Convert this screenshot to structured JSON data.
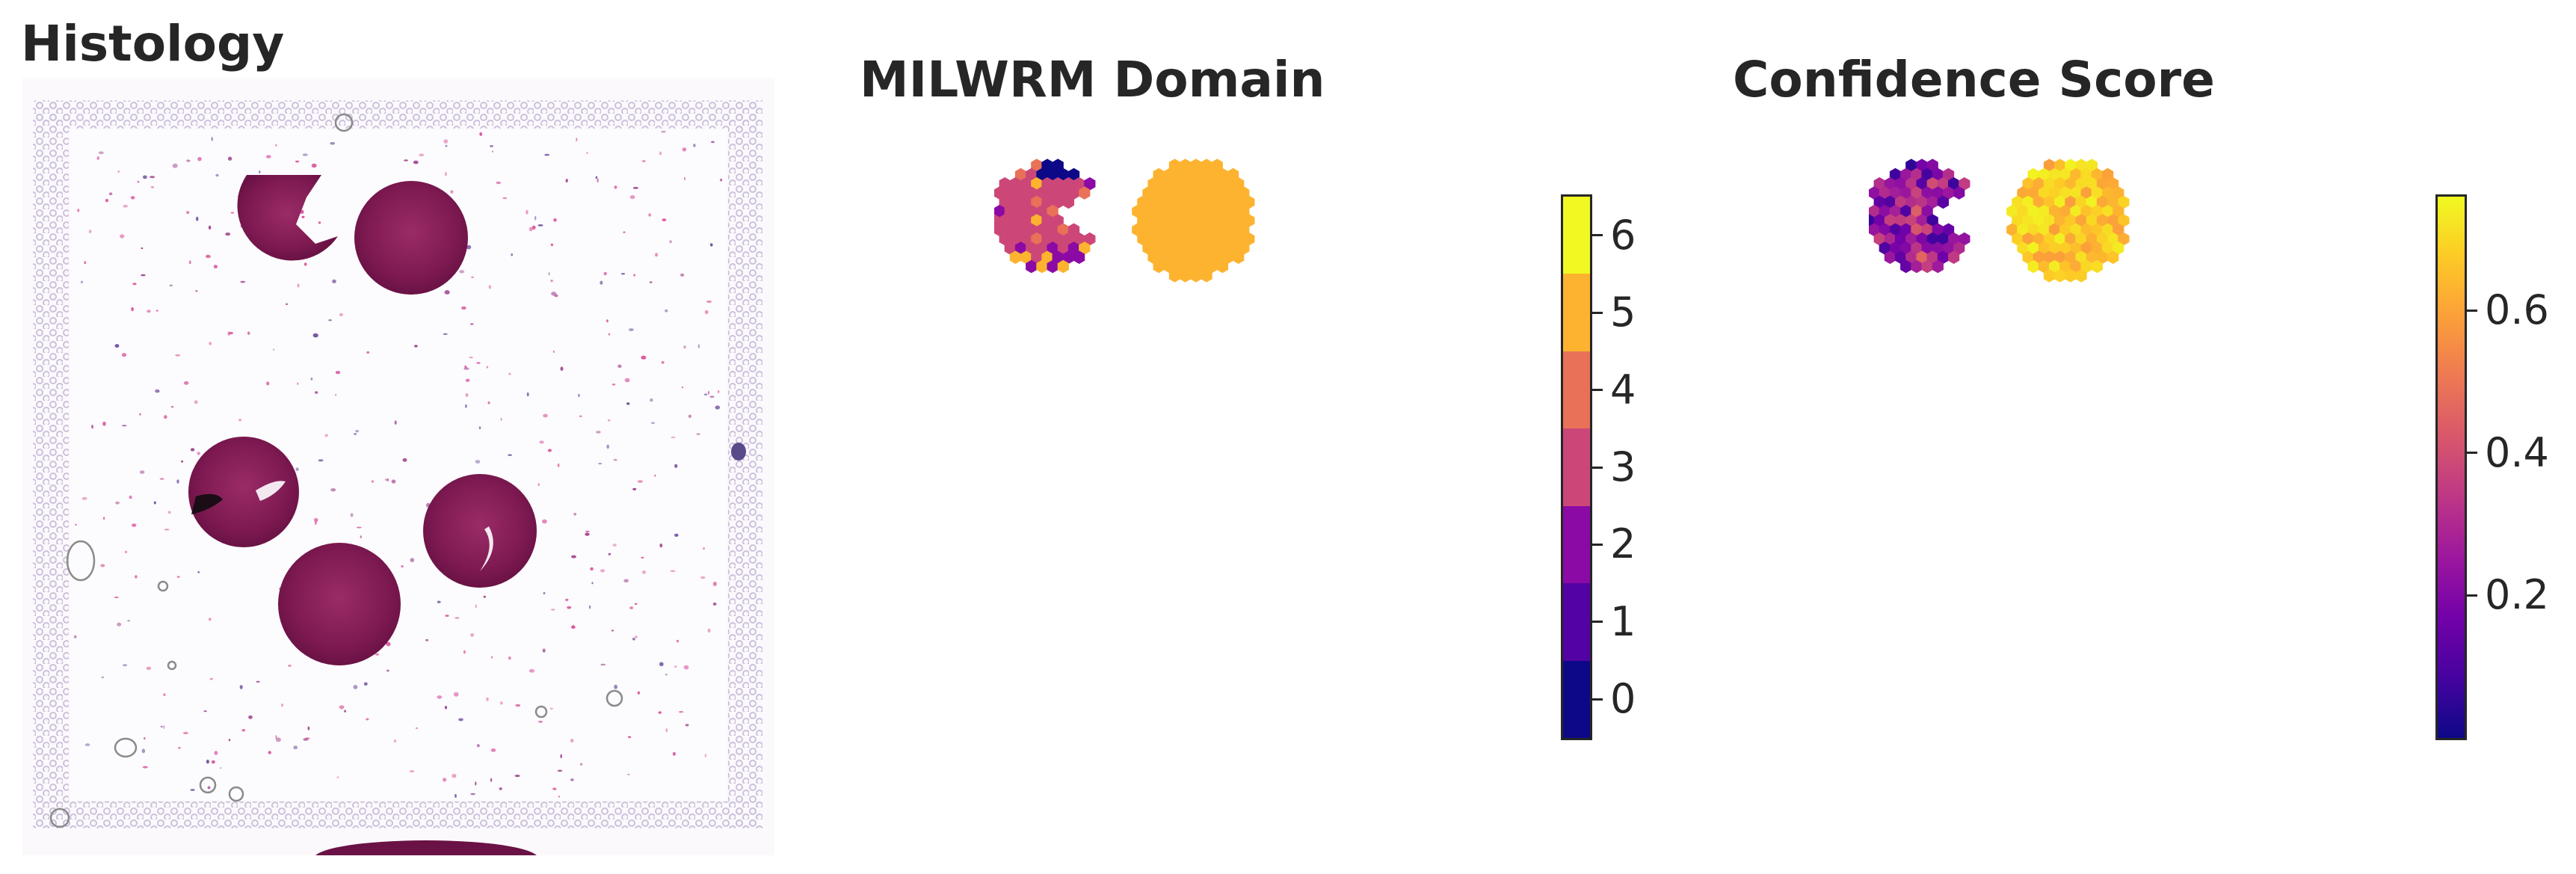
{
  "panels": {
    "histology": {
      "title": "Histology"
    },
    "domain": {
      "title": "MILWRM Domain",
      "colorbar": {
        "colormap": "plasma",
        "discrete": true,
        "ticks": [
          "0",
          "1",
          "2",
          "3",
          "4",
          "5",
          "6"
        ],
        "colors": [
          "#0d0887",
          "#5302a3",
          "#8b0aa5",
          "#cc4778",
          "#e97158",
          "#fdb32f",
          "#f0f921"
        ]
      }
    },
    "confidence": {
      "title": "Confidence Score",
      "colorbar": {
        "colormap": "plasma",
        "discrete": false,
        "min": 0.0,
        "max": 0.76,
        "ticks": [
          "0.2",
          "0.4",
          "0.6"
        ],
        "tick_values": [
          0.2,
          0.4,
          0.6
        ]
      }
    }
  },
  "tissue": {
    "crescent_domain_1_dominant": 3,
    "disk_domain": 5
  },
  "colors": {
    "title_text": "#262626",
    "tissue_stain": "#8e1f58",
    "fiducial": "#cfc3dc"
  }
}
